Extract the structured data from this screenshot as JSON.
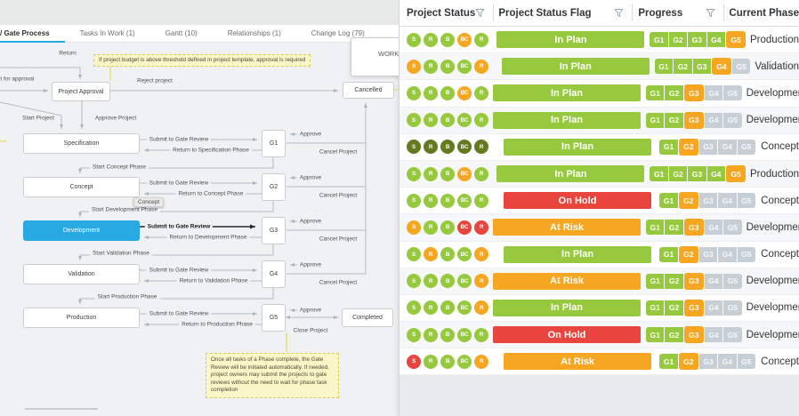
{
  "colors": {
    "green": "#97C93E",
    "orange": "#F7A622",
    "red": "#E8453F",
    "olive": "#637A1F",
    "gray": "#C7CFD6",
    "blue": "#29A9E1",
    "line": "#B2BCC6",
    "yellow_line": "#EBDC7A"
  },
  "tabs": [
    {
      "label": "/ Gate Process",
      "active": true
    },
    {
      "label": "Tasks In Work (1)",
      "active": false
    },
    {
      "label": "Gantt (10)",
      "active": false
    },
    {
      "label": "Relationships (1)",
      "active": false
    },
    {
      "label": "Change Log (79)",
      "active": false
    }
  ],
  "flow": {
    "nodes": {
      "project_approval": "Project Approval",
      "cancelled": "Cancelled",
      "specification": "Specification",
      "concept": "Concept",
      "development": "Development",
      "validation": "Validation",
      "production": "Production",
      "completed": "Completed",
      "g1": "G1",
      "g2": "G2",
      "g3": "G3",
      "g4": "G4",
      "g5": "G5"
    },
    "labels": {
      "return": "Return",
      "submit_for_approval": "Submit for approval",
      "reject_project": "Reject project",
      "start_project": "Start Project",
      "approve_project": "Approve Project",
      "submit_to_gate_review": "Submit to Gate Review",
      "return_to_specification": "Return to Specification Phase",
      "start_concept": "Start Concept Phase",
      "return_to_concept": "Return to Concept Phase",
      "start_development": "Start Development Phase",
      "return_to_development": "Return to Development Phase",
      "start_validation": "Start Validation Phase",
      "return_to_validation": "Return to Validation Phase",
      "start_production": "Start Production Phase",
      "return_to_production": "Return to Production Phase",
      "approve": "Approve",
      "cancel_project": "Cancel Project",
      "close_project": "Close Project"
    },
    "tooltip": "Concept",
    "work_box": "WORK",
    "notes": {
      "budget": "If project budget is above threshold defined in project template, approval is required",
      "gate_review": "Once all tasks of a Phase complete, the Gate Review will be initiated automatically. If needed, project owners may submit the projects to gate reviews without the need to wait for phase task completion"
    }
  },
  "table": {
    "columns": [
      {
        "label": "Project Status"
      },
      {
        "label": "Project Status Flag"
      },
      {
        "label": "Progress"
      },
      {
        "label": "Current Phase"
      }
    ],
    "status_labels": [
      "S",
      "R",
      "B",
      "BC",
      "R"
    ],
    "gate_labels": [
      "G1",
      "G2",
      "G3",
      "G4",
      "G5"
    ],
    "rows": [
      {
        "status": [
          "green",
          "green",
          "green",
          "orange",
          "green"
        ],
        "flag": "In Plan",
        "flag_color": "green",
        "gates": [
          "green",
          "green",
          "green",
          "green",
          "orange"
        ],
        "phase": "Production"
      },
      {
        "status": [
          "orange",
          "green",
          "green",
          "green",
          "orange"
        ],
        "flag": "In Plan",
        "flag_color": "green",
        "gates": [
          "green",
          "green",
          "green",
          "orange",
          "gray"
        ],
        "phase": "Validation"
      },
      {
        "status": [
          "green",
          "green",
          "green",
          "orange",
          "green"
        ],
        "flag": "In Plan",
        "flag_color": "green",
        "gates": [
          "green",
          "green",
          "orange",
          "gray",
          "gray"
        ],
        "phase": "Development"
      },
      {
        "status": [
          "green",
          "green",
          "green",
          "green",
          "green"
        ],
        "flag": "In Plan",
        "flag_color": "green",
        "gates": [
          "green",
          "green",
          "orange",
          "gray",
          "gray"
        ],
        "phase": "Development"
      },
      {
        "status": [
          "olive",
          "olive",
          "olive",
          "olive",
          "olive"
        ],
        "flag": "In Plan",
        "flag_color": "green",
        "gates": [
          "green",
          "orange",
          "gray",
          "gray",
          "gray"
        ],
        "phase": "Concept"
      },
      {
        "status": [
          "green",
          "green",
          "green",
          "orange",
          "green"
        ],
        "flag": "In Plan",
        "flag_color": "green",
        "gates": [
          "green",
          "green",
          "green",
          "green",
          "orange"
        ],
        "phase": "Production"
      },
      {
        "status": [
          "green",
          "green",
          "green",
          "green",
          "green"
        ],
        "flag": "On Hold",
        "flag_color": "red",
        "gates": [
          "green",
          "orange",
          "gray",
          "gray",
          "gray"
        ],
        "phase": "Concept"
      },
      {
        "status": [
          "orange",
          "green",
          "green",
          "red",
          "red"
        ],
        "flag": "At Risk",
        "flag_color": "orange",
        "gates": [
          "green",
          "green",
          "orange",
          "gray",
          "gray"
        ],
        "phase": "Development"
      },
      {
        "status": [
          "green",
          "orange",
          "green",
          "green",
          "orange"
        ],
        "flag": "In Plan",
        "flag_color": "green",
        "gates": [
          "green",
          "orange",
          "gray",
          "gray",
          "gray"
        ],
        "phase": "Concept"
      },
      {
        "status": [
          "green",
          "green",
          "green",
          "green",
          "orange"
        ],
        "flag": "At Risk",
        "flag_color": "orange",
        "gates": [
          "green",
          "green",
          "orange",
          "gray",
          "gray"
        ],
        "phase": "Development"
      },
      {
        "status": [
          "green",
          "green",
          "green",
          "green",
          "orange"
        ],
        "flag": "In Plan",
        "flag_color": "green",
        "gates": [
          "green",
          "green",
          "orange",
          "gray",
          "gray"
        ],
        "phase": "Development"
      },
      {
        "status": [
          "green",
          "green",
          "green",
          "green",
          "green"
        ],
        "flag": "On Hold",
        "flag_color": "red",
        "gates": [
          "green",
          "green",
          "orange",
          "gray",
          "gray"
        ],
        "phase": "Development"
      },
      {
        "status": [
          "red",
          "green",
          "green",
          "green",
          "orange"
        ],
        "flag": "At Risk",
        "flag_color": "orange",
        "gates": [
          "green",
          "orange",
          "gray",
          "gray",
          "gray"
        ],
        "phase": "Concept"
      }
    ]
  }
}
